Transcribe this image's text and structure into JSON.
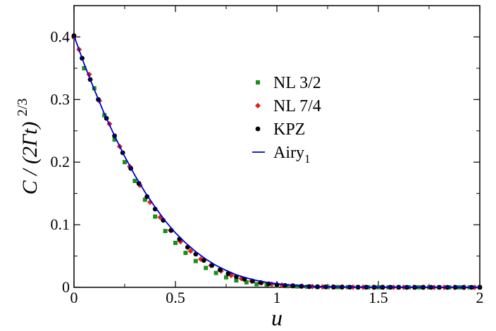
{
  "chart_data": {
    "type": "scatter",
    "title": "",
    "xlabel": "u",
    "ylabel": {
      "main": "C / (2Γt)",
      "exponent": "2/3"
    },
    "xlim": [
      0,
      2
    ],
    "ylim": [
      0,
      0.45
    ],
    "x_ticks": [
      "0",
      "0.5",
      "1",
      "1.5",
      "2"
    ],
    "y_ticks": [
      "0",
      "0.1",
      "0.2",
      "0.3",
      "0.4"
    ],
    "grid": false,
    "legend_position": "upper-center-right",
    "series": [
      {
        "name": "NL 3/2",
        "marker": "square",
        "color": "#1a8f1a",
        "x": [
          0,
          0.05,
          0.1,
          0.15,
          0.2,
          0.25,
          0.3,
          0.35,
          0.4,
          0.45,
          0.5,
          0.55,
          0.6,
          0.65,
          0.7,
          0.75,
          0.8,
          0.85,
          0.9,
          0.95,
          1.0,
          1.05,
          1.1,
          1.15,
          1.2,
          1.25,
          1.3,
          1.35,
          1.4,
          1.45,
          1.5,
          1.55,
          1.6,
          1.65,
          1.7,
          1.75,
          1.8,
          1.85,
          1.9,
          1.95,
          2.0
        ],
        "y": [
          0.4,
          0.35,
          0.318,
          0.275,
          0.236,
          0.2,
          0.17,
          0.14,
          0.113,
          0.09,
          0.071,
          0.055,
          0.042,
          0.031,
          0.023,
          0.016,
          0.011,
          0.008,
          0.005,
          0.004,
          0.003,
          0.002,
          0.0015,
          0.001,
          0.0007,
          0.0005,
          0.0004,
          0.0003,
          0.0002,
          0.0002,
          0.0001,
          0.0001,
          0.0001,
          0.0001,
          0.0001,
          0,
          0,
          0,
          0,
          0,
          0
        ]
      },
      {
        "name": "NL 7/4",
        "marker": "diamond",
        "color": "#e0201b",
        "x": [
          0,
          0.025,
          0.075,
          0.125,
          0.175,
          0.225,
          0.275,
          0.325,
          0.375,
          0.425,
          0.475,
          0.525,
          0.575,
          0.625,
          0.675,
          0.725,
          0.775,
          0.825,
          0.875,
          0.925,
          0.975,
          1.025,
          1.075,
          1.125,
          1.175,
          1.225,
          1.275,
          1.325,
          1.375,
          1.425,
          1.475,
          1.525,
          1.575,
          1.625,
          1.675,
          1.725,
          1.775,
          1.825,
          1.875,
          1.925,
          1.975
        ],
        "y": [
          0.4,
          0.38,
          0.34,
          0.298,
          0.261,
          0.225,
          0.193,
          0.163,
          0.136,
          0.112,
          0.091,
          0.073,
          0.058,
          0.045,
          0.035,
          0.026,
          0.019,
          0.014,
          0.01,
          0.007,
          0.005,
          0.0035,
          0.0025,
          0.0018,
          0.0013,
          0.0009,
          0.0007,
          0.0005,
          0.0004,
          0.0003,
          0.0002,
          0.0002,
          0.0001,
          0.0001,
          0.0001,
          0.0001,
          0,
          0,
          0,
          0,
          0
        ]
      },
      {
        "name": "KPZ",
        "marker": "circle",
        "color": "#000000",
        "x": [
          0,
          0.04,
          0.08,
          0.12,
          0.16,
          0.2,
          0.24,
          0.28,
          0.32,
          0.36,
          0.4,
          0.44,
          0.48,
          0.52,
          0.56,
          0.6,
          0.64,
          0.68,
          0.72,
          0.76,
          0.8,
          0.84,
          0.88,
          0.92,
          0.96,
          1.0,
          1.04,
          1.08,
          1.12,
          1.16,
          1.2,
          1.24,
          1.28,
          1.32,
          1.36,
          1.4,
          1.44,
          1.48,
          1.52,
          1.56,
          1.6,
          1.64,
          1.68,
          1.72,
          1.76,
          1.8,
          1.84,
          1.88,
          1.92,
          1.96,
          2.0
        ],
        "y": [
          0.402,
          0.366,
          0.332,
          0.3,
          0.27,
          0.242,
          0.215,
          0.19,
          0.166,
          0.145,
          0.125,
          0.107,
          0.091,
          0.077,
          0.064,
          0.053,
          0.043,
          0.035,
          0.028,
          0.022,
          0.017,
          0.013,
          0.01,
          0.0075,
          0.0056,
          0.0042,
          0.0031,
          0.0023,
          0.0017,
          0.0012,
          0.0009,
          0.0007,
          0.0005,
          0.0004,
          0.0003,
          0.0002,
          0.0002,
          0.0001,
          0.0001,
          0.0001,
          0.0001,
          0,
          0,
          0,
          0,
          0,
          0,
          0,
          0,
          0,
          0
        ]
      },
      {
        "name": "Airy",
        "name_subscript": "1",
        "marker": "line",
        "color": "#0000cc",
        "x": [
          0,
          0.05,
          0.1,
          0.15,
          0.2,
          0.25,
          0.3,
          0.35,
          0.4,
          0.45,
          0.5,
          0.55,
          0.6,
          0.65,
          0.7,
          0.75,
          0.8,
          0.85,
          0.9,
          0.95,
          1.0,
          1.1,
          1.2,
          1.3,
          1.4,
          1.5,
          1.6,
          1.7,
          1.8,
          1.9,
          2.0
        ],
        "y": [
          0.402,
          0.357,
          0.316,
          0.277,
          0.242,
          0.209,
          0.179,
          0.152,
          0.128,
          0.106,
          0.087,
          0.071,
          0.057,
          0.045,
          0.035,
          0.027,
          0.02,
          0.015,
          0.011,
          0.008,
          0.0057,
          0.0028,
          0.0013,
          0.0006,
          0.0003,
          0.0001,
          5e-05,
          2e-05,
          1e-05,
          0,
          0
        ]
      }
    ]
  }
}
